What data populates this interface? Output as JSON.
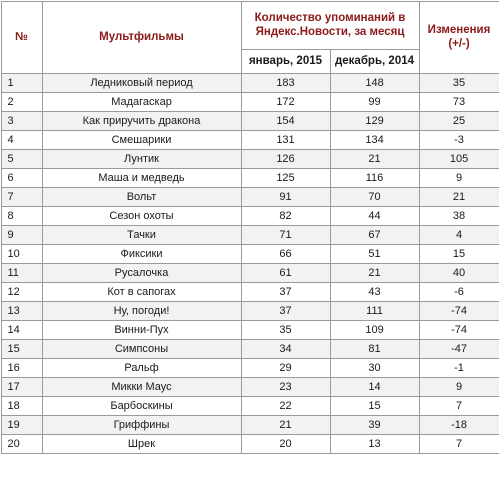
{
  "header": {
    "col_num": "№",
    "col_title": "Мультфильмы",
    "col_mentions_line1": "Количество упоминаний в",
    "col_mentions_line2": "Яндекс.Новости, за месяц",
    "col_jan": "январь, 2015",
    "col_dec": "декабрь, 2014",
    "col_change_line1": "Изменения",
    "col_change_line2": "(+/-)"
  },
  "rows": [
    {
      "num": "1",
      "title": "Ледниковый период",
      "jan": "183",
      "dec": "148",
      "change": "35"
    },
    {
      "num": "2",
      "title": "Мадагаскар",
      "jan": "172",
      "dec": "99",
      "change": "73"
    },
    {
      "num": "3",
      "title": "Как приручить дракона",
      "jan": "154",
      "dec": "129",
      "change": "25"
    },
    {
      "num": "4",
      "title": "Смешарики",
      "jan": "131",
      "dec": "134",
      "change": "-3"
    },
    {
      "num": "5",
      "title": "Лунтик",
      "jan": "126",
      "dec": "21",
      "change": "105"
    },
    {
      "num": "6",
      "title": "Маша и медведь",
      "jan": "125",
      "dec": "116",
      "change": "9"
    },
    {
      "num": "7",
      "title": "Вольт",
      "jan": "91",
      "dec": "70",
      "change": "21"
    },
    {
      "num": "8",
      "title": "Сезон охоты",
      "jan": "82",
      "dec": "44",
      "change": "38"
    },
    {
      "num": "9",
      "title": "Тачки",
      "jan": "71",
      "dec": "67",
      "change": "4"
    },
    {
      "num": "10",
      "title": "Фиксики",
      "jan": "66",
      "dec": "51",
      "change": "15"
    },
    {
      "num": "11",
      "title": "Русалочка",
      "jan": "61",
      "dec": "21",
      "change": "40"
    },
    {
      "num": "12",
      "title": "Кот в сапогах",
      "jan": "37",
      "dec": "43",
      "change": "-6"
    },
    {
      "num": "13",
      "title": "Ну, погоди!",
      "jan": "37",
      "dec": "111",
      "change": "-74"
    },
    {
      "num": "14",
      "title": "Винни-Пух",
      "jan": "35",
      "dec": "109",
      "change": "-74"
    },
    {
      "num": "15",
      "title": "Симпсоны",
      "jan": "34",
      "dec": "81",
      "change": "-47"
    },
    {
      "num": "16",
      "title": "Ральф",
      "jan": "29",
      "dec": "30",
      "change": "-1"
    },
    {
      "num": "17",
      "title": "Микки Маус",
      "jan": "23",
      "dec": "14",
      "change": "9"
    },
    {
      "num": "18",
      "title": "Барбоскины",
      "jan": "22",
      "dec": "15",
      "change": "7"
    },
    {
      "num": "19",
      "title": "Гриффины",
      "jan": "21",
      "dec": "39",
      "change": "-18"
    },
    {
      "num": "20",
      "title": "Шрек",
      "jan": "20",
      "dec": "13",
      "change": "7"
    }
  ]
}
